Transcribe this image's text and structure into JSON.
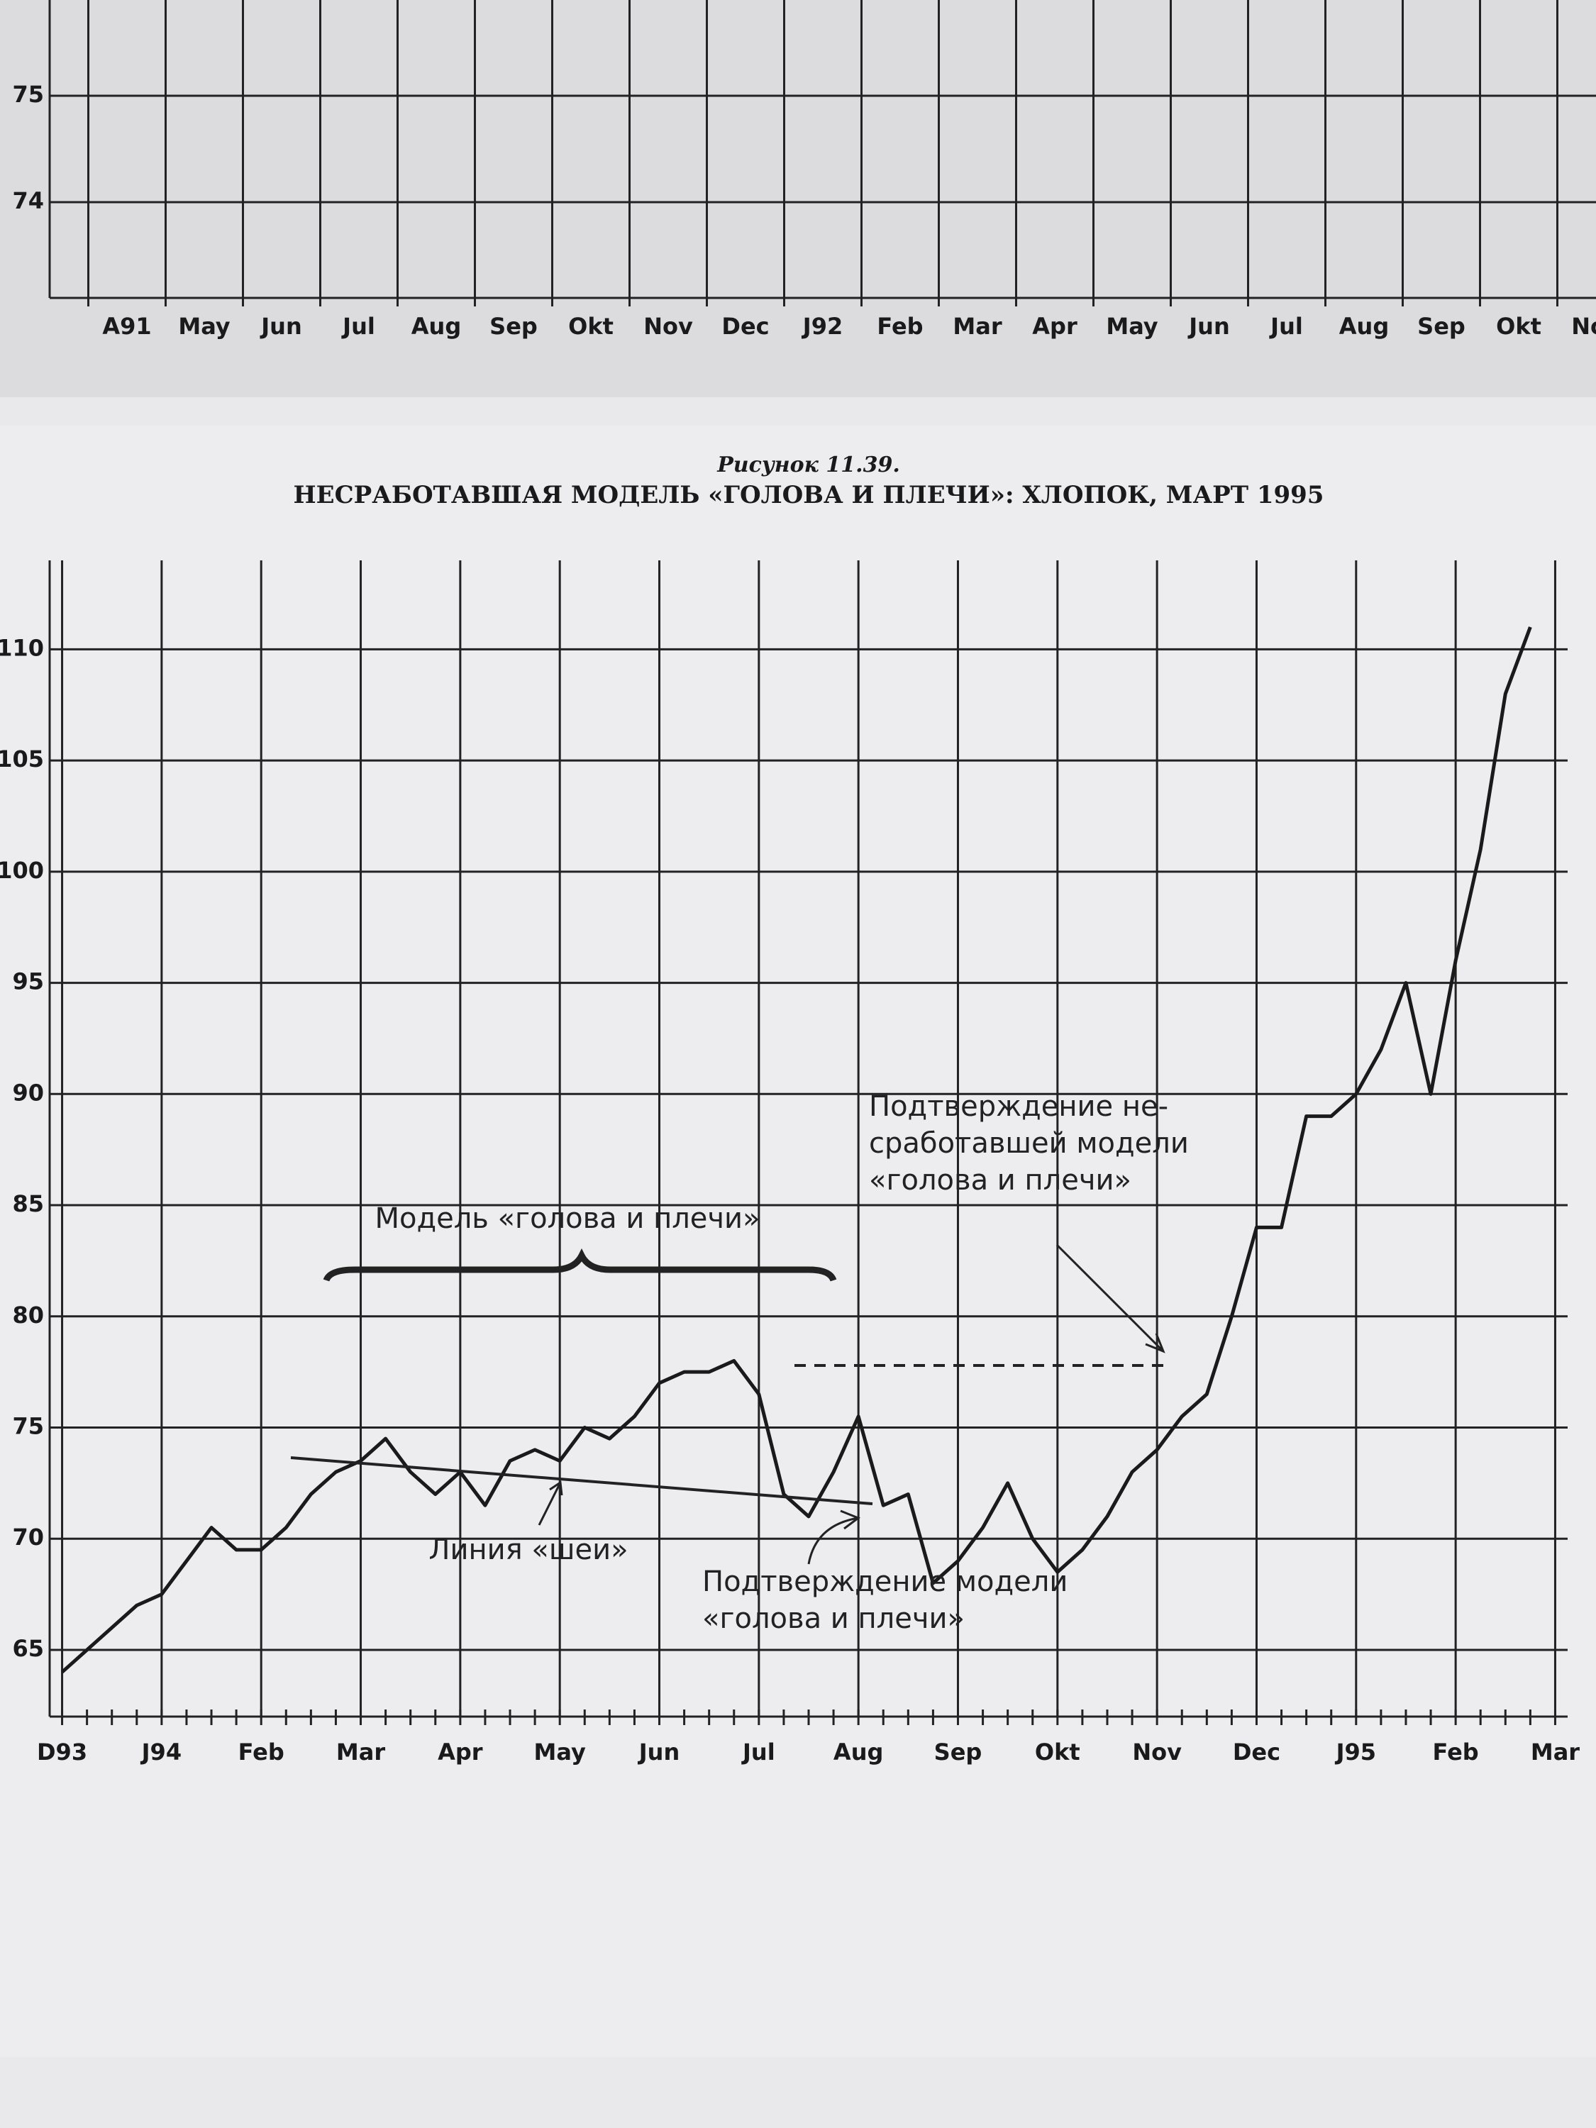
{
  "chart_data": [
    {
      "type": "line",
      "categories": [
        "A91",
        "May",
        "Jun",
        "Jul",
        "Aug",
        "Sep",
        "Okt",
        "Nov",
        "Dec",
        "J92",
        "Feb",
        "Mar",
        "Apr",
        "May",
        "Jun",
        "Jul",
        "Aug",
        "Sep",
        "Okt",
        "Nov"
      ],
      "ylim": [
        73.1,
        75.9
      ],
      "yticks": [
        74,
        75
      ],
      "grid": true
    },
    {
      "type": "line",
      "title": "Рисунок 11.39.",
      "subtitle": "НЕСРАБОТАВШАЯ МОДЕЛЬ «ГОЛОВА И ПЛЕЧИ»: ХЛОПОК, МАРТ 1995",
      "categories": [
        "D93",
        null,
        null,
        null,
        "J94",
        null,
        null,
        null,
        "Feb",
        null,
        null,
        null,
        "Mar",
        null,
        null,
        null,
        "Apr",
        null,
        null,
        null,
        "May",
        null,
        null,
        null,
        "Jun",
        null,
        null,
        null,
        "Jul",
        null,
        null,
        null,
        "Aug",
        null,
        null,
        null,
        "Sep",
        null,
        null,
        null,
        "Okt",
        null,
        null,
        null,
        "Nov",
        null,
        null,
        null,
        "Dec",
        null,
        null,
        null,
        "J95",
        null,
        null,
        null,
        "Feb",
        null,
        null,
        null,
        "Mar"
      ],
      "series": [
        {
          "color": "#1a1a1a",
          "values": [
            64,
            65,
            66,
            67,
            67.5,
            69,
            70.5,
            69.5,
            69.5,
            70.5,
            72,
            73,
            73.5,
            74.5,
            73,
            72,
            73,
            71.5,
            73.5,
            74,
            73.5,
            75,
            74.5,
            75.5,
            77,
            77.5,
            77.5,
            78,
            76.5,
            72,
            71,
            73,
            75.5,
            71.5,
            72,
            68,
            69,
            70.5,
            72.5,
            70,
            68.5,
            69.5,
            71,
            73,
            74,
            75.5,
            76.5,
            80,
            84,
            84,
            89,
            89,
            90,
            92,
            95,
            90,
            96,
            101,
            108,
            111,
            null
          ]
        }
      ],
      "ylim": [
        62,
        114
      ],
      "yticks": [
        65,
        70,
        75,
        80,
        85,
        90,
        95,
        100,
        105,
        110
      ],
      "grid": true,
      "annotations": [
        [
          "Модель «голова и плечи»"
        ],
        [
          "Линия «шеи»"
        ],
        [
          "Подтверждение модели",
          "«голова и плечи»"
        ],
        [
          "Подтверждение не-",
          "сработавшей модели",
          "«голова и плечи»"
        ]
      ]
    }
  ]
}
